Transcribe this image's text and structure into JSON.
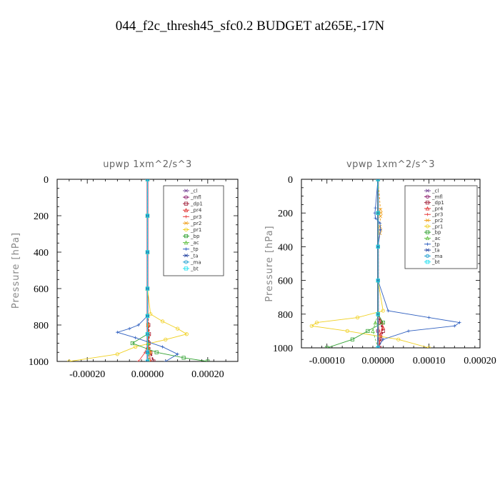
{
  "figure": {
    "title": "044_f2c_thresh45_sfc0.2  BUDGET at265E,-17N"
  },
  "chart_data": [
    {
      "type": "line",
      "title": "upwp   1xm^2/s^3",
      "ylabel": "Pressure [hPa]",
      "xlabel": "",
      "xlim": [
        -0.0003,
        0.0003
      ],
      "ylim": [
        1000,
        0
      ],
      "xticks": [
        -0.0002,
        0.0,
        0.0002
      ],
      "xtick_labels": [
        "-0.00020",
        "0.00000",
        "0.00020"
      ],
      "yticks": [
        0,
        200,
        400,
        600,
        800,
        1000
      ],
      "ytick_labels": [
        "0",
        "200",
        "400",
        "600",
        "800",
        "1000"
      ],
      "legend_position": "top-right",
      "series": [
        {
          "name": "_cl",
          "color": "#7a4c9a",
          "pressure": [
            0,
            200,
            400,
            600,
            750,
            850,
            950,
            1000
          ],
          "values": [
            0,
            0,
            0,
            0,
            0,
            0,
            0,
            0
          ]
        },
        {
          "name": "_mfl",
          "color": "#8b1a6b",
          "pressure": [
            0,
            200,
            400,
            600,
            750,
            850,
            950,
            1000
          ],
          "values": [
            0,
            0,
            0,
            0,
            0,
            0,
            0,
            0
          ]
        },
        {
          "name": "_dp1",
          "color": "#a0203a",
          "pressure": [
            0,
            200,
            400,
            600,
            750,
            800,
            850,
            900,
            950,
            1000
          ],
          "values": [
            0,
            0,
            0,
            0,
            0,
            3e-06,
            5e-06,
            4e-06,
            1e-05,
            2e-05
          ]
        },
        {
          "name": "_pr4",
          "color": "#e03030",
          "pressure": [
            0,
            200,
            400,
            600,
            750,
            800,
            850,
            900,
            950,
            1000
          ],
          "values": [
            0,
            0,
            0,
            0,
            0,
            2e-06,
            4e-06,
            3e-06,
            6e-06,
            1e-05
          ]
        },
        {
          "name": "_pr3",
          "color": "#e84040",
          "pressure": [
            0,
            200,
            400,
            600,
            750,
            800,
            850,
            900,
            950,
            1000
          ],
          "values": [
            0,
            0,
            0,
            0,
            0,
            1e-06,
            3e-06,
            2e-06,
            -8e-06,
            -3e-05
          ]
        },
        {
          "name": "_pr2",
          "color": "#f0a020",
          "pressure": [
            0,
            200,
            400,
            600,
            750,
            800,
            850,
            900,
            950,
            1000
          ],
          "values": [
            0,
            0,
            0,
            0,
            0,
            1e-06,
            2e-06,
            1e-06,
            1e-05,
            5e-06
          ]
        },
        {
          "name": "_pr1",
          "color": "#f0d020",
          "pressure": [
            0,
            200,
            400,
            600,
            740,
            780,
            820,
            850,
            880,
            920,
            960,
            1000
          ],
          "values": [
            0,
            0,
            0,
            0,
            1e-05,
            5e-05,
            0.0001,
            0.00013,
            6e-05,
            -4e-05,
            -0.0001,
            -0.00026
          ]
        },
        {
          "name": "_bp",
          "color": "#30a030",
          "pressure": [
            0,
            200,
            400,
            600,
            750,
            850,
            900,
            950,
            980,
            1000
          ],
          "values": [
            0,
            0,
            0,
            0,
            0,
            0,
            -5e-05,
            3e-05,
            0.00012,
            0.0002
          ]
        },
        {
          "name": "_ac",
          "color": "#60c040",
          "pressure": [
            0,
            200,
            400,
            600,
            750,
            850,
            900,
            950,
            1000
          ],
          "values": [
            0,
            0,
            0,
            0,
            0,
            1e-06,
            2e-06,
            3e-06,
            5e-06
          ]
        },
        {
          "name": "_tp",
          "color": "#3060c0",
          "pressure": [
            0,
            200,
            400,
            600,
            750,
            800,
            820,
            840,
            870,
            920,
            960,
            1000
          ],
          "values": [
            0,
            0,
            0,
            0,
            0,
            -3e-05,
            -6e-05,
            -0.0001,
            -4e-05,
            5e-05,
            0.0001,
            6e-05
          ]
        },
        {
          "name": "_ta",
          "color": "#2040a0",
          "pressure": [
            0,
            200,
            400,
            600,
            750,
            850,
            950,
            1000
          ],
          "values": [
            0,
            0,
            0,
            0,
            0,
            0,
            0,
            0
          ]
        },
        {
          "name": "_ma",
          "color": "#20a0d0",
          "pressure": [
            0,
            200,
            400,
            600,
            750,
            850,
            950,
            1000
          ],
          "values": [
            0,
            0,
            0,
            0,
            0,
            0,
            0,
            0
          ]
        },
        {
          "name": "_bt",
          "color": "#20e0f0",
          "pressure": [
            0,
            200,
            400,
            600,
            750,
            850,
            950,
            1000
          ],
          "values": [
            0,
            0,
            0,
            0,
            0,
            0,
            0,
            0
          ]
        }
      ]
    },
    {
      "type": "line",
      "title": "vpwp   1xm^2/s^3",
      "ylabel": "Pressure [hPa]",
      "xlabel": "",
      "xlim": [
        -0.00015,
        0.0002
      ],
      "ylim": [
        1000,
        0
      ],
      "xticks": [
        -0.0001,
        0.0,
        0.0001,
        0.0002
      ],
      "xtick_labels": [
        "-0.00010",
        "0.00000",
        "0.00010",
        "0.00020"
      ],
      "yticks": [
        0,
        200,
        400,
        600,
        800,
        1000
      ],
      "ytick_labels": [
        "0",
        "200",
        "400",
        "600",
        "800",
        "1000"
      ],
      "legend_position": "top-right",
      "series": [
        {
          "name": "_cl",
          "color": "#7a4c9a",
          "pressure": [
            0,
            200,
            400,
            600,
            800,
            900,
            1000
          ],
          "values": [
            0,
            0,
            0,
            0,
            0,
            0,
            0
          ]
        },
        {
          "name": "_mfl",
          "color": "#8b1a6b",
          "pressure": [
            0,
            200,
            400,
            600,
            800,
            900,
            1000
          ],
          "values": [
            0,
            0,
            0,
            0,
            0,
            0,
            0
          ]
        },
        {
          "name": "_dp1",
          "color": "#a0203a",
          "pressure": [
            0,
            200,
            400,
            600,
            800,
            850,
            900,
            950,
            1000
          ],
          "values": [
            0,
            0,
            0,
            0,
            0,
            5e-06,
            1e-05,
            5e-06,
            3e-06
          ]
        },
        {
          "name": "_pr4",
          "color": "#e03030",
          "pressure": [
            0,
            200,
            400,
            600,
            800,
            850,
            880,
            920,
            1000
          ],
          "values": [
            0,
            0,
            0,
            0,
            0,
            8e-06,
            1e-05,
            5e-06,
            2e-06
          ]
        },
        {
          "name": "_pr3",
          "color": "#e84040",
          "pressure": [
            0,
            200,
            400,
            600,
            800,
            900,
            1000
          ],
          "values": [
            0,
            0,
            0,
            0,
            0,
            2e-06,
            1e-06
          ]
        },
        {
          "name": "_pr2",
          "color": "#f0a020",
          "pressure": [
            0,
            180,
            200,
            220,
            280,
            300,
            320,
            400,
            600,
            800,
            1000
          ],
          "values": [
            0,
            5e-06,
            6e-06,
            5e-06,
            4e-06,
            5e-06,
            4e-06,
            0,
            0,
            0,
            0
          ]
        },
        {
          "name": "_pr1",
          "color": "#f0d020",
          "pressure": [
            0,
            200,
            400,
            600,
            780,
            820,
            850,
            870,
            900,
            950,
            1000
          ],
          "values": [
            0,
            0,
            0,
            0,
            1e-05,
            -4e-05,
            -0.00012,
            -0.00013,
            -6e-05,
            4e-05,
            0.0001
          ]
        },
        {
          "name": "_bp",
          "color": "#30a030",
          "pressure": [
            0,
            200,
            400,
            600,
            800,
            850,
            900,
            950,
            1000
          ],
          "values": [
            0,
            0,
            0,
            0,
            0,
            1e-05,
            -2e-05,
            -5e-05,
            -0.0001
          ]
        },
        {
          "name": "_ac",
          "color": "#60c040",
          "pressure": [
            0,
            200,
            400,
            600,
            800,
            850,
            900,
            1000
          ],
          "values": [
            0,
            0,
            0,
            0,
            0,
            -5e-06,
            -1e-05,
            0
          ]
        },
        {
          "name": "_tp",
          "color": "#3060c0",
          "pressure": [
            0,
            170,
            200,
            230,
            260,
            300,
            400,
            600,
            780,
            820,
            850,
            870,
            900,
            950,
            1000
          ],
          "values": [
            0,
            -5e-06,
            -6e-06,
            -5e-06,
            4e-06,
            5e-06,
            0,
            0,
            2e-05,
            0.0001,
            0.00016,
            0.00015,
            6e-05,
            1e-05,
            0
          ]
        },
        {
          "name": "_ta",
          "color": "#2040a0",
          "pressure": [
            0,
            200,
            400,
            600,
            800,
            1000
          ],
          "values": [
            0,
            0,
            0,
            0,
            0,
            0
          ]
        },
        {
          "name": "_ma",
          "color": "#20a0d0",
          "pressure": [
            0,
            200,
            400,
            600,
            800,
            1000
          ],
          "values": [
            0,
            0,
            0,
            0,
            0,
            0
          ]
        },
        {
          "name": "_bt",
          "color": "#20e0f0",
          "pressure": [
            0,
            200,
            400,
            600,
            800,
            1000
          ],
          "values": [
            0,
            0,
            0,
            0,
            0,
            0
          ]
        }
      ]
    }
  ]
}
